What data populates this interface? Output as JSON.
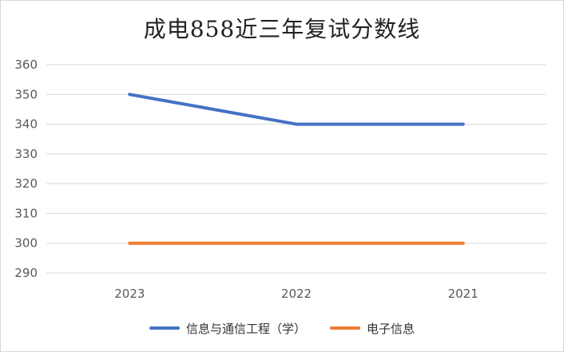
{
  "chart_data": {
    "type": "line",
    "title": "成电858近三年复试分数线",
    "categories": [
      "2023",
      "2022",
      "2021"
    ],
    "ylim": [
      290,
      360
    ],
    "yticks": [
      290,
      300,
      310,
      320,
      330,
      340,
      350,
      360
    ],
    "grid": true,
    "legend_position": "bottom",
    "series": [
      {
        "name": "信息与通信工程（学）",
        "values": [
          350,
          340,
          340
        ],
        "color": "#4472c4"
      },
      {
        "name": "电子信息",
        "values": [
          300,
          300,
          300
        ],
        "color": "#ed7d31"
      }
    ]
  }
}
